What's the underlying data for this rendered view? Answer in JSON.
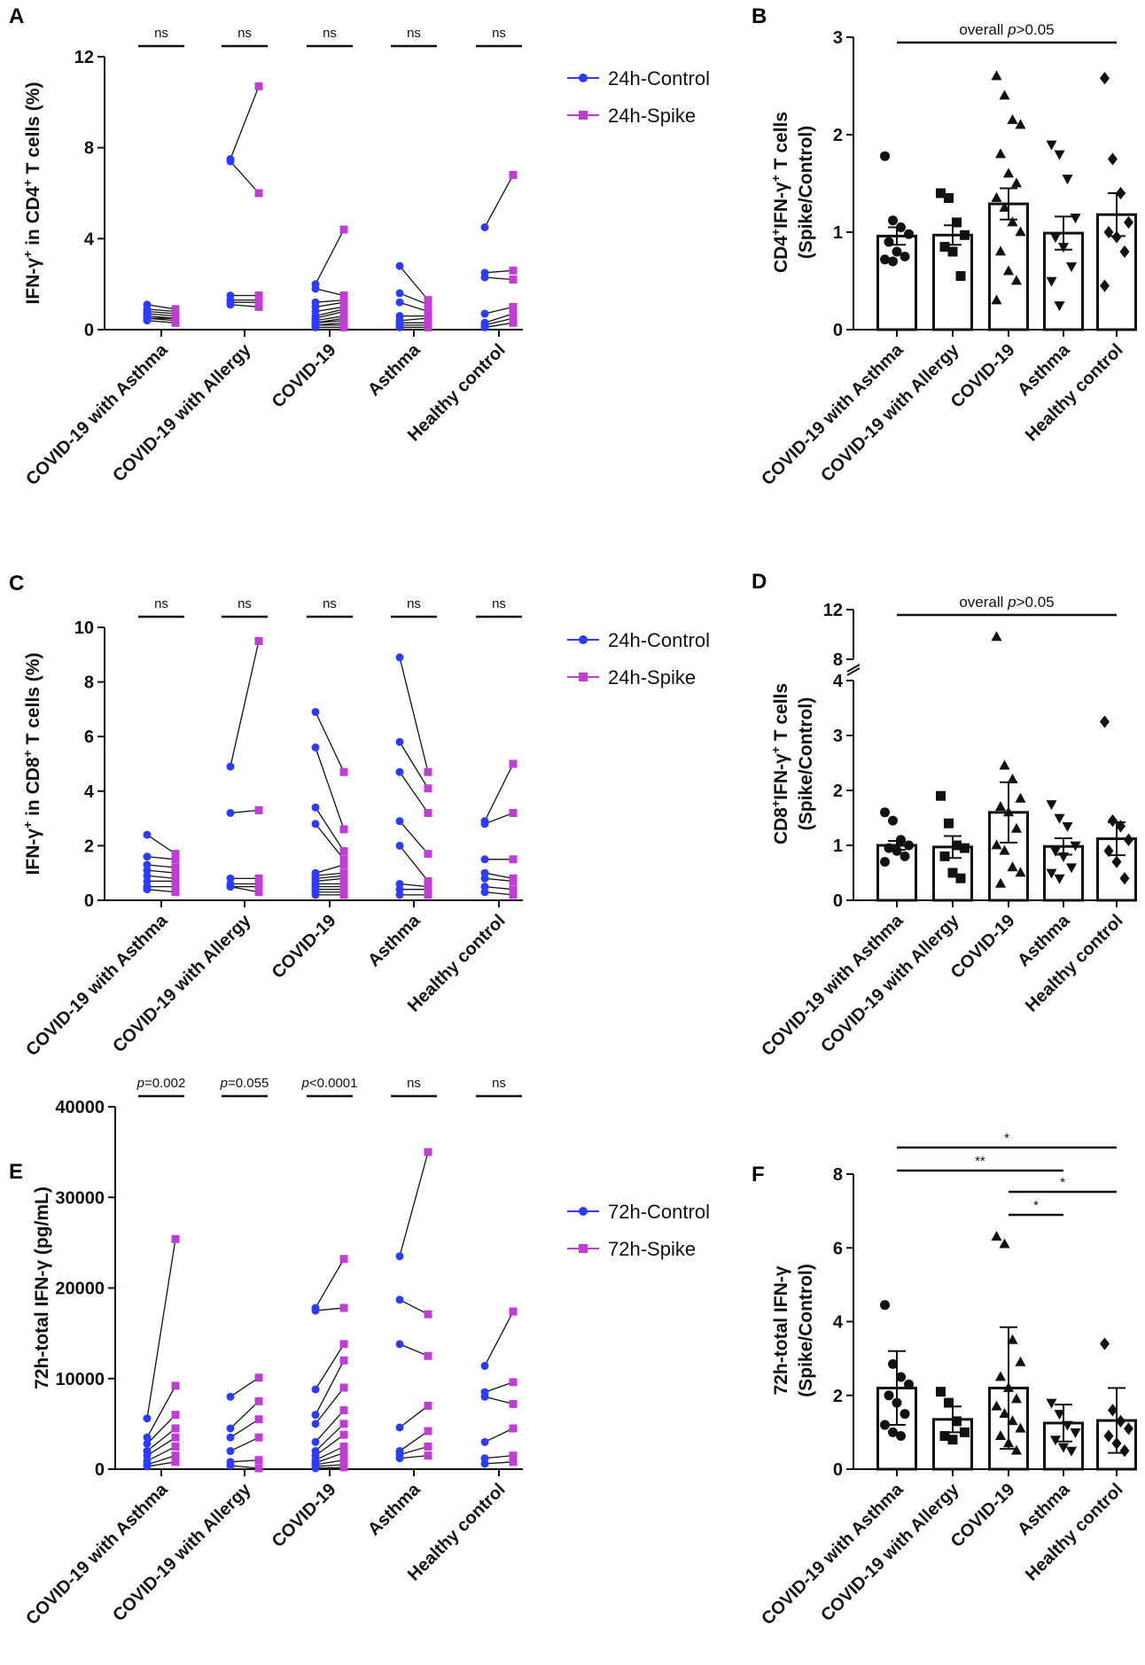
{
  "colors": {
    "control": "#2b3bff",
    "spike": "#c13bd6",
    "axis": "#111111",
    "connector": "#111111"
  },
  "categories": [
    "COVID-19 with Asthma",
    "COVID-19 with Allergy",
    "COVID-19",
    "Asthma",
    "Healthy control"
  ],
  "chart_data": [
    {
      "panel": "A",
      "type": "scatter",
      "ylabel": "IFN-γ+ in CD4+ T cells (%)",
      "ylabel_parts": [
        {
          "t": "IFN-γ"
        },
        {
          "t": "+",
          "sup": true
        },
        {
          "t": " in CD4"
        },
        {
          "t": "+",
          "sup": true
        },
        {
          "t": " T cells (%)"
        }
      ],
      "ylim": [
        0,
        12
      ],
      "yticks": [
        "0",
        "4",
        "8",
        "12"
      ],
      "ytick_values": [
        0,
        4,
        8,
        12
      ],
      "legend": [
        "24h-Control",
        "24h-Spike"
      ],
      "significance": [
        "ns",
        "ns",
        "ns",
        "ns",
        "ns"
      ],
      "series": [
        {
          "name": "24h-Control",
          "values": [
            [
              1.1,
              0.9,
              0.8,
              0.7,
              0.6,
              0.5,
              0.5,
              0.4
            ],
            [
              7.5,
              7.4,
              1.5,
              1.3,
              1.2,
              1.1
            ],
            [
              2.0,
              1.8,
              1.2,
              1.0,
              0.8,
              0.6,
              0.5,
              0.4,
              0.3,
              0.3,
              0.2,
              0.2,
              0.1
            ],
            [
              2.8,
              1.6,
              1.2,
              0.6,
              0.4,
              0.3,
              0.2,
              0.1
            ],
            [
              4.5,
              2.5,
              2.3,
              0.7,
              0.3,
              0.2,
              0.1
            ]
          ]
        },
        {
          "name": "24h-Spike",
          "values": [
            [
              0.9,
              0.8,
              0.7,
              0.6,
              0.5,
              0.5,
              0.4,
              0.3
            ],
            [
              10.7,
              6.0,
              1.5,
              1.3,
              1.2,
              1.0
            ],
            [
              4.4,
              1.5,
              1.3,
              1.2,
              1.0,
              0.9,
              0.8,
              0.6,
              0.5,
              0.4,
              0.3,
              0.2,
              0.1
            ],
            [
              1.3,
              1.1,
              0.8,
              0.6,
              0.5,
              0.3,
              0.2,
              0.1
            ],
            [
              6.8,
              2.6,
              2.2,
              1.0,
              0.7,
              0.5,
              0.3
            ]
          ]
        }
      ]
    },
    {
      "panel": "B",
      "type": "bar",
      "ylabel_line1_parts": [
        {
          "t": "CD4"
        },
        {
          "t": "+",
          "sup": true
        },
        {
          "t": "IFN-γ"
        },
        {
          "t": "+",
          "sup": true
        },
        {
          "t": " T cells"
        }
      ],
      "ylabel_line2": "(Spike/Control)",
      "ylabel": "CD4+IFN-γ+ T cells (Spike/Control)",
      "ylim": [
        0,
        3
      ],
      "yticks": [
        "0",
        "1",
        "2",
        "3"
      ],
      "ytick_values": [
        0,
        1,
        2,
        3
      ],
      "annotation_prefix": "overall ",
      "annotation_p": "p",
      "annotation_suffix": ">0.05",
      "markers": [
        "circle",
        "square",
        "triangle",
        "triangle-down",
        "diamond"
      ],
      "means": [
        0.96,
        0.97,
        1.29,
        0.99,
        1.18
      ],
      "sem": [
        0.09,
        0.1,
        0.16,
        0.17,
        0.22
      ],
      "points": [
        [
          1.78,
          1.12,
          1.05,
          0.98,
          0.9,
          0.8,
          0.75,
          0.72,
          0.7
        ],
        [
          1.4,
          1.35,
          1.1,
          0.97,
          0.85,
          0.8,
          0.55
        ],
        [
          2.6,
          2.4,
          2.15,
          2.1,
          1.8,
          1.6,
          1.5,
          1.35,
          1.25,
          1.1,
          1.0,
          0.8,
          0.6,
          0.5,
          0.3
        ],
        [
          1.9,
          1.8,
          1.55,
          1.15,
          0.95,
          0.85,
          0.65,
          0.5,
          0.25
        ],
        [
          2.58,
          1.75,
          1.4,
          1.1,
          1.0,
          0.95,
          0.8,
          0.45
        ]
      ]
    },
    {
      "panel": "C",
      "type": "scatter",
      "ylabel": "IFN-γ+ in CD8+ T cells (%)",
      "ylabel_parts": [
        {
          "t": "IFN-γ"
        },
        {
          "t": "+",
          "sup": true
        },
        {
          "t": " in CD8"
        },
        {
          "t": "+",
          "sup": true
        },
        {
          "t": " T cells (%)"
        }
      ],
      "ylim": [
        0,
        10
      ],
      "yticks": [
        "0",
        "2",
        "4",
        "6",
        "8",
        "10"
      ],
      "ytick_values": [
        0,
        2,
        4,
        6,
        8,
        10
      ],
      "legend": [
        "24h-Control",
        "24h-Spike"
      ],
      "significance": [
        "ns",
        "ns",
        "ns",
        "ns",
        "ns"
      ],
      "series": [
        {
          "name": "24h-Control",
          "values": [
            [
              2.4,
              1.6,
              1.3,
              1.1,
              0.9,
              0.7,
              0.5,
              0.4
            ],
            [
              4.9,
              3.2,
              0.8,
              0.6,
              0.5,
              0.5
            ],
            [
              6.9,
              5.6,
              3.4,
              2.8,
              1.0,
              0.9,
              0.8,
              0.7,
              0.6,
              0.5,
              0.4,
              0.3,
              0.2
            ],
            [
              8.9,
              5.8,
              4.7,
              2.9,
              2.0,
              0.6,
              0.4,
              0.2
            ],
            [
              2.9,
              2.8,
              1.5,
              1.0,
              0.8,
              0.5,
              0.3
            ]
          ]
        },
        {
          "name": "24h-Spike",
          "values": [
            [
              1.7,
              1.5,
              1.2,
              1.0,
              0.8,
              0.7,
              0.5,
              0.3
            ],
            [
              9.5,
              3.3,
              0.8,
              0.6,
              0.5,
              0.3
            ],
            [
              4.7,
              2.6,
              1.8,
              1.5,
              1.3,
              1.0,
              0.9,
              0.8,
              0.6,
              0.5,
              0.4,
              0.3,
              0.2
            ],
            [
              4.7,
              4.1,
              3.2,
              1.7,
              0.7,
              0.5,
              0.4,
              0.2
            ],
            [
              5.0,
              3.2,
              1.5,
              0.8,
              0.7,
              0.4,
              0.2
            ]
          ]
        }
      ]
    },
    {
      "panel": "D",
      "type": "bar",
      "broken_axis": true,
      "ylabel_line1_parts": [
        {
          "t": "CD8"
        },
        {
          "t": "+",
          "sup": true
        },
        {
          "t": "IFN-γ"
        },
        {
          "t": "+",
          "sup": true
        },
        {
          "t": " T cells"
        }
      ],
      "ylabel_line2": "(Spike/Control)",
      "ylabel": "CD8+IFN-γ+ T cells (Spike/Control)",
      "ylim": [
        0,
        12
      ],
      "yticks": [
        "0",
        "1",
        "2",
        "3",
        "4",
        "8",
        "12"
      ],
      "ytick_values": [
        0,
        1,
        2,
        3,
        4,
        8,
        12
      ],
      "annotation_prefix": "overall ",
      "annotation_p": "p",
      "annotation_suffix": ">0.05",
      "markers": [
        "circle",
        "square",
        "triangle",
        "triangle-down",
        "diamond"
      ],
      "means": [
        1.0,
        0.97,
        1.6,
        0.98,
        1.12
      ],
      "sem": [
        0.08,
        0.2,
        0.55,
        0.15,
        0.3
      ],
      "points": [
        [
          1.6,
          1.45,
          1.1,
          1.0,
          0.95,
          0.9,
          0.8,
          0.7
        ],
        [
          1.9,
          1.4,
          1.0,
          0.95,
          0.8,
          0.5,
          0.4
        ],
        [
          9.8,
          2.45,
          2.2,
          1.85,
          1.7,
          1.6,
          1.3,
          1.0,
          0.9,
          0.6,
          0.5,
          0.3
        ],
        [
          1.75,
          1.5,
          1.35,
          1.0,
          0.9,
          0.8,
          0.6,
          0.5,
          0.4
        ],
        [
          3.25,
          1.45,
          1.35,
          1.1,
          0.9,
          0.7,
          0.4
        ]
      ]
    },
    {
      "panel": "E",
      "type": "scatter",
      "ylabel": "72h-total IFN-γ (pg/mL)",
      "ylim": [
        0,
        40000
      ],
      "yticks": [
        "0",
        "10000",
        "20000",
        "30000",
        "40000"
      ],
      "ytick_values": [
        0,
        10000,
        20000,
        30000,
        40000
      ],
      "legend": [
        "72h-Control",
        "72h-Spike"
      ],
      "significance": [
        "p=0.002",
        "p=0.055",
        "p<0.0001",
        "ns",
        "ns"
      ],
      "sig_p": [
        "p",
        "p",
        "p",
        "",
        ""
      ],
      "sig_rest": [
        "=0.002",
        "=0.055",
        "<0.0001",
        "ns",
        "ns"
      ],
      "series": [
        {
          "name": "72h-Control",
          "values": [
            [
              5600,
              3500,
              2800,
              2000,
              1500,
              900,
              500,
              300
            ],
            [
              8000,
              4500,
              3500,
              2000,
              800,
              400
            ],
            [
              17800,
              17500,
              8800,
              6000,
              5000,
              3000,
              2000,
              1500,
              1000,
              700,
              500,
              300,
              100
            ],
            [
              23500,
              18700,
              13800,
              4600,
              2000,
              1600,
              1200
            ],
            [
              11400,
              8500,
              8000,
              3000,
              1200,
              600
            ]
          ]
        },
        {
          "name": "72h-Spike",
          "values": [
            [
              25400,
              9200,
              6000,
              4500,
              3500,
              2500,
              1500,
              800
            ],
            [
              10100,
              7500,
              5500,
              3500,
              1000,
              100
            ],
            [
              23200,
              17800,
              13800,
              12000,
              9000,
              6500,
              5000,
              3800,
              2500,
              1800,
              1000,
              500,
              200
            ],
            [
              35000,
              17100,
              12500,
              7000,
              4200,
              2500,
              1500
            ],
            [
              17400,
              9600,
              7200,
              4500,
              1500,
              800
            ]
          ]
        }
      ]
    },
    {
      "panel": "F",
      "type": "bar",
      "ylabel_line1_parts": [
        {
          "t": "72h-total IFN-γ"
        }
      ],
      "ylabel_line2": "(Spike/Control)",
      "ylabel": "72h-total IFN-γ (Spike/Control)",
      "ylim": [
        0,
        8
      ],
      "yticks": [
        "0",
        "2",
        "4",
        "6",
        "8"
      ],
      "ytick_values": [
        0,
        2,
        4,
        6,
        8
      ],
      "markers": [
        "circle",
        "square",
        "triangle",
        "triangle-down",
        "diamond"
      ],
      "means": [
        2.2,
        1.35,
        2.2,
        1.25,
        1.32
      ],
      "sem": [
        1.0,
        0.35,
        1.65,
        0.5,
        0.88
      ],
      "points": [
        [
          4.45,
          2.85,
          2.5,
          2.3,
          2.0,
          1.8,
          1.5,
          1.2,
          1.0,
          0.9
        ],
        [
          2.1,
          1.8,
          1.3,
          1.0,
          0.9,
          0.8
        ],
        [
          6.3,
          6.1,
          3.5,
          2.9,
          2.5,
          2.2,
          1.9,
          1.7,
          1.5,
          1.3,
          1.1,
          0.9,
          0.7,
          0.5
        ],
        [
          1.8,
          1.5,
          1.2,
          1.0,
          0.8,
          0.6,
          0.5
        ],
        [
          3.4,
          1.6,
          1.3,
          1.1,
          0.9,
          0.7,
          0.5
        ]
      ],
      "comparisons": [
        {
          "from": 0,
          "to": 4,
          "label": "*"
        },
        {
          "from": 0,
          "to": 3,
          "label": "**"
        },
        {
          "from": 2,
          "to": 4,
          "label": "*"
        },
        {
          "from": 2,
          "to": 3,
          "label": "*"
        }
      ]
    }
  ]
}
